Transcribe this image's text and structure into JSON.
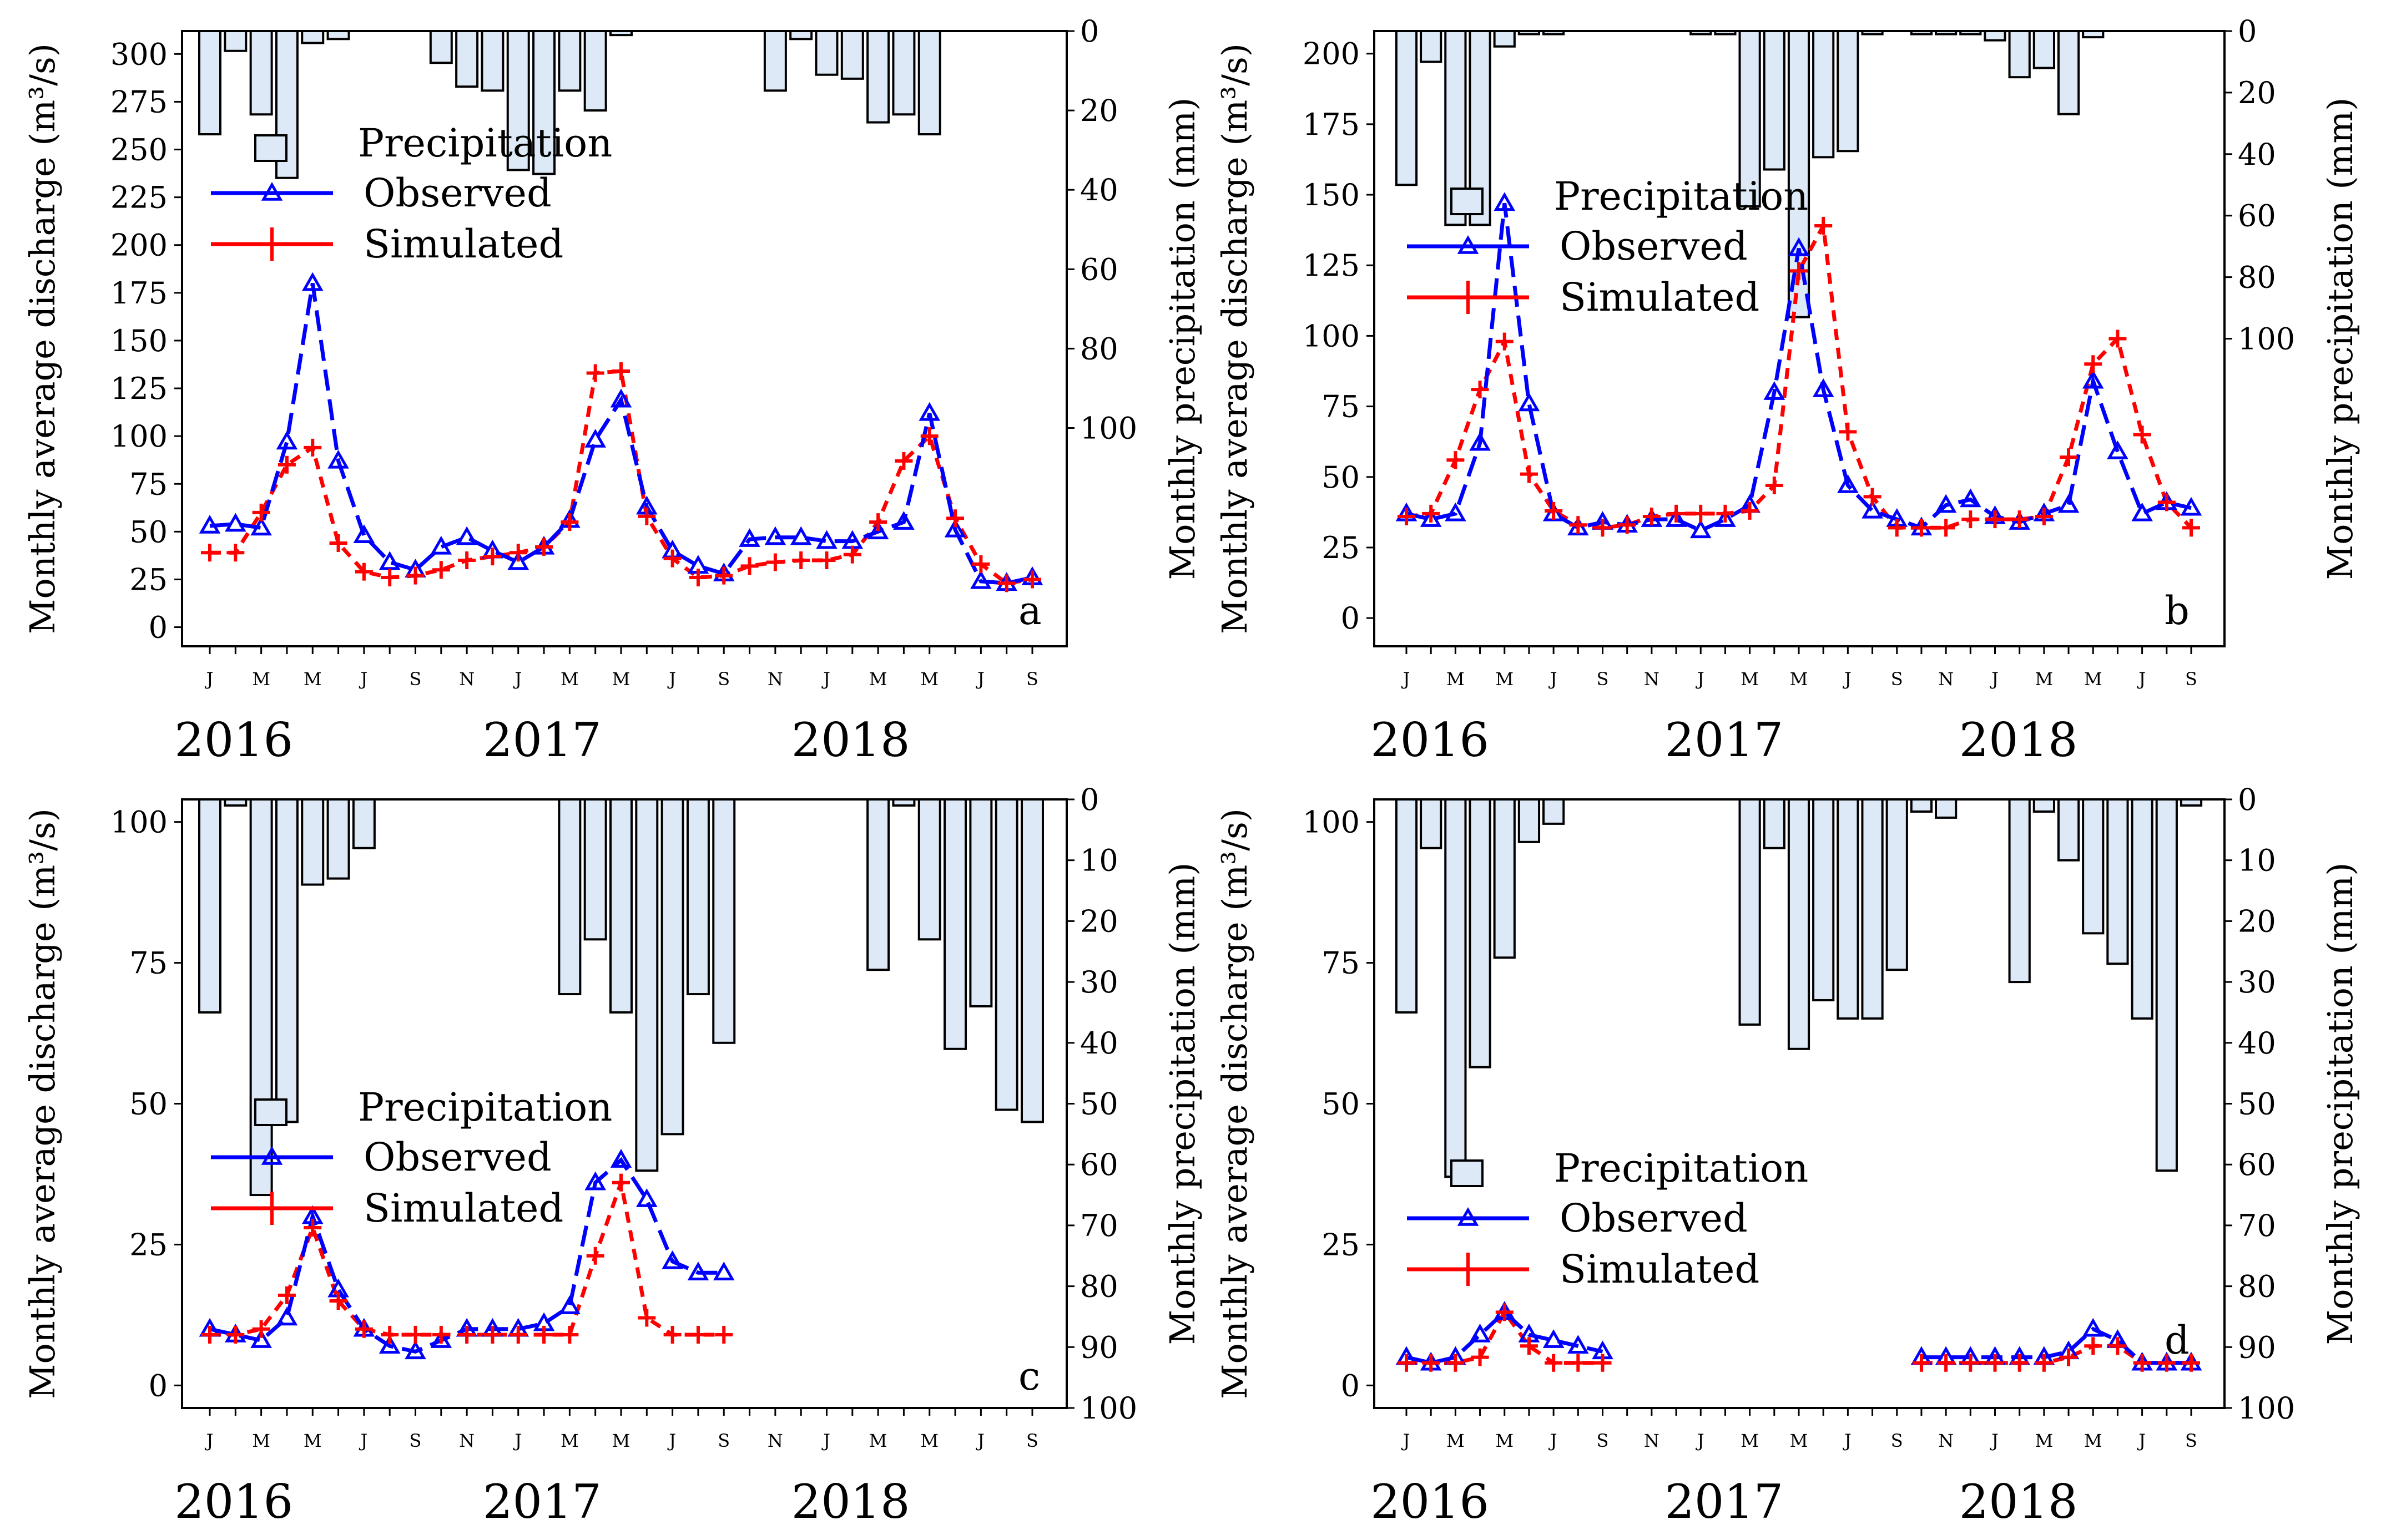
{
  "chart_data": [
    {
      "type": "line",
      "panel": "a",
      "months": [
        "Jan-2016",
        "Feb-2016",
        "Mar-2016",
        "Apr-2016",
        "May-2016",
        "Jun-2016",
        "Jul-2016",
        "Aug-2016",
        "Sep-2016",
        "Oct-2016",
        "Nov-2016",
        "Dec-2016",
        "Jan-2017",
        "Feb-2017",
        "Mar-2017",
        "Apr-2017",
        "May-2017",
        "Jun-2017",
        "Jul-2017",
        "Aug-2017",
        "Sep-2017",
        "Oct-2017",
        "Nov-2017",
        "Dec-2017",
        "Jan-2018",
        "Feb-2018",
        "Mar-2018",
        "Apr-2018",
        "May-2018",
        "Jun-2018",
        "Jul-2018",
        "Aug-2018",
        "Sep-2018"
      ],
      "month_labels": [
        "J",
        "M",
        "M",
        "J",
        "S",
        "N",
        "J",
        "M",
        "M",
        "J",
        "S",
        "N",
        "J",
        "M",
        "M",
        "J",
        "S"
      ],
      "years": [
        "2016",
        "2017",
        "2018"
      ],
      "ylabel": "Monthly average discharge (m³/s)",
      "y2label": "Monthly precipitation (mm)",
      "ylim": [
        -10,
        312
      ],
      "yticks": [
        0,
        25,
        50,
        75,
        100,
        125,
        150,
        175,
        200,
        225,
        250,
        275,
        300
      ],
      "y2lim": [
        0,
        155
      ],
      "y2ticks": [
        0,
        20,
        40,
        60,
        80,
        100
      ],
      "legend_position": "upper-left",
      "series": [
        {
          "name": "Observed",
          "color": "#0000ff",
          "marker": "triangle",
          "values": [
            53,
            54,
            52,
            97,
            180,
            87,
            48,
            34,
            30,
            42,
            47,
            40,
            34,
            42,
            56,
            98,
            119,
            63,
            40,
            32,
            28,
            46,
            47,
            47,
            45,
            45,
            50,
            55,
            112,
            51,
            24,
            23,
            26
          ]
        },
        {
          "name": "Simulated",
          "color": "#ff0000",
          "marker": "plus",
          "values": [
            39,
            39,
            60,
            85,
            94,
            44,
            29,
            26,
            27,
            30,
            35,
            37,
            39,
            42,
            55,
            133,
            134,
            58,
            36,
            26,
            27,
            32,
            34,
            35,
            35,
            38,
            55,
            87,
            100,
            57,
            33,
            23,
            25
          ]
        },
        {
          "name": "Precipitation",
          "type": "bar",
          "axis": "y2",
          "values": [
            26,
            5,
            21,
            37,
            3,
            2,
            0,
            0,
            0,
            8,
            14,
            15,
            35,
            36,
            15,
            20,
            1,
            0,
            0,
            0,
            0,
            0,
            15,
            2,
            11,
            12,
            23,
            21,
            26,
            0,
            0,
            0,
            0
          ]
        }
      ]
    },
    {
      "type": "line",
      "panel": "b",
      "months": [
        "Jan-2016",
        "Feb-2016",
        "Mar-2016",
        "Apr-2016",
        "May-2016",
        "Jun-2016",
        "Jul-2016",
        "Aug-2016",
        "Sep-2016",
        "Oct-2016",
        "Nov-2016",
        "Dec-2016",
        "Jan-2017",
        "Feb-2017",
        "Mar-2017",
        "Apr-2017",
        "May-2017",
        "Jun-2017",
        "Jul-2017",
        "Aug-2017",
        "Sep-2017",
        "Oct-2017",
        "Nov-2017",
        "Dec-2017",
        "Jan-2018",
        "Feb-2018",
        "Mar-2018",
        "Apr-2018",
        "May-2018",
        "Jun-2018",
        "Jul-2018",
        "Aug-2018",
        "Sep-2018"
      ],
      "month_labels": [
        "J",
        "M",
        "M",
        "J",
        "S",
        "N",
        "J",
        "M",
        "M",
        "J",
        "S",
        "N",
        "J",
        "M",
        "M",
        "J",
        "S"
      ],
      "years": [
        "2016",
        "2017",
        "2018"
      ],
      "ylabel": "Monthly average discharge (m³/s)",
      "y2label": "Monthly precipitation (mm)",
      "ylim": [
        -10,
        208
      ],
      "yticks": [
        0,
        25,
        50,
        75,
        100,
        125,
        150,
        175,
        200
      ],
      "y2lim": [
        0,
        200
      ],
      "y2ticks": [
        0,
        20,
        40,
        60,
        80,
        100
      ],
      "legend_position": "center-left",
      "series": [
        {
          "name": "Observed",
          "color": "#0000ff",
          "marker": "triangle",
          "values": [
            37,
            35,
            37,
            62,
            147,
            76,
            37,
            32,
            34,
            33,
            35,
            35,
            31,
            35,
            40,
            80,
            131,
            81,
            47,
            38,
            35,
            32,
            40,
            42,
            36,
            34,
            37,
            40,
            84,
            59,
            37,
            41,
            39
          ]
        },
        {
          "name": "Simulated",
          "color": "#ff0000",
          "marker": "plus",
          "values": [
            36,
            37,
            56,
            81,
            98,
            51,
            38,
            33,
            32,
            33,
            36,
            37,
            37,
            37,
            38,
            47,
            123,
            139,
            66,
            43,
            32,
            32,
            32,
            35,
            35,
            35,
            36,
            57,
            90,
            99,
            65,
            41,
            32
          ]
        },
        {
          "name": "Precipitation",
          "type": "bar",
          "axis": "y2",
          "values": [
            50,
            10,
            63,
            63,
            5,
            1,
            1,
            0,
            0,
            0,
            0,
            0,
            1,
            1,
            57,
            45,
            93,
            41,
            39,
            1,
            0,
            1,
            1,
            1,
            3,
            15,
            12,
            27,
            2,
            0,
            0,
            0,
            0
          ]
        }
      ]
    },
    {
      "type": "line",
      "panel": "c",
      "months": [
        "Jan-2016",
        "Feb-2016",
        "Mar-2016",
        "Apr-2016",
        "May-2016",
        "Jun-2016",
        "Jul-2016",
        "Aug-2016",
        "Sep-2016",
        "Oct-2016",
        "Nov-2016",
        "Dec-2016",
        "Jan-2017",
        "Feb-2017",
        "Mar-2017",
        "Apr-2017",
        "May-2017",
        "Jun-2017",
        "Jul-2017",
        "Aug-2017",
        "Sep-2017",
        "Oct-2017",
        "Nov-2017",
        "Dec-2017",
        "Jan-2018",
        "Feb-2018",
        "Mar-2018",
        "Apr-2018",
        "May-2018",
        "Jun-2018",
        "Jul-2018",
        "Aug-2018",
        "Sep-2018"
      ],
      "month_labels": [
        "J",
        "M",
        "M",
        "J",
        "S",
        "N",
        "J",
        "M",
        "M",
        "J",
        "S",
        "N",
        "J",
        "M",
        "M",
        "J",
        "S"
      ],
      "years": [
        "2016",
        "2017",
        "2018"
      ],
      "ylabel": "Monthly average discharge (m³/s)",
      "y2label": "Monthly precipitation (mm)",
      "ylim": [
        -4,
        104
      ],
      "yticks": [
        0,
        25,
        50,
        75,
        100
      ],
      "y2lim": [
        0,
        100
      ],
      "y2ticks": [
        0,
        10,
        20,
        30,
        40,
        50,
        60,
        70,
        80,
        90,
        100
      ],
      "legend_position": "center-left",
      "series": [
        {
          "name": "Observed",
          "color": "#0000ff",
          "marker": "triangle",
          "values": [
            10,
            9,
            8,
            12,
            30,
            17,
            10,
            7,
            6,
            8,
            10,
            10,
            10,
            11,
            14,
            36,
            40,
            33,
            22,
            20,
            20,
            null,
            null,
            null,
            null,
            null,
            null,
            null,
            null,
            null,
            null,
            null,
            null
          ]
        },
        {
          "name": "Simulated",
          "color": "#ff0000",
          "marker": "plus",
          "values": [
            9,
            9,
            10,
            16,
            28,
            15,
            10,
            9,
            9,
            9,
            9,
            9,
            9,
            9,
            9,
            23,
            36,
            12,
            9,
            9,
            9,
            null,
            null,
            null,
            null,
            null,
            null,
            null,
            null,
            null,
            null,
            null,
            null
          ]
        },
        {
          "name": "Precipitation",
          "type": "bar",
          "axis": "y2",
          "values": [
            35,
            1,
            65,
            53,
            14,
            13,
            8,
            0,
            0,
            0,
            0,
            0,
            0,
            0,
            32,
            23,
            35,
            61,
            55,
            32,
            40,
            0,
            0,
            0,
            0,
            0,
            28,
            1,
            23,
            41,
            34,
            51,
            53
          ]
        }
      ]
    },
    {
      "type": "line",
      "panel": "d",
      "months": [
        "Jan-2016",
        "Feb-2016",
        "Mar-2016",
        "Apr-2016",
        "May-2016",
        "Jun-2016",
        "Jul-2016",
        "Aug-2016",
        "Sep-2016",
        "Oct-2016",
        "Nov-2016",
        "Dec-2016",
        "Jan-2017",
        "Feb-2017",
        "Mar-2017",
        "Apr-2017",
        "May-2017",
        "Jun-2017",
        "Jul-2017",
        "Aug-2017",
        "Sep-2017",
        "Oct-2017",
        "Nov-2017",
        "Dec-2017",
        "Jan-2018",
        "Feb-2018",
        "Mar-2018",
        "Apr-2018",
        "May-2018",
        "Jun-2018",
        "Jul-2018",
        "Aug-2018",
        "Sep-2018"
      ],
      "month_labels": [
        "J",
        "M",
        "M",
        "J",
        "S",
        "N",
        "J",
        "M",
        "M",
        "J",
        "S",
        "N",
        "J",
        "M",
        "M",
        "J",
        "S"
      ],
      "years": [
        "2016",
        "2017",
        "2018"
      ],
      "ylabel": "Monthly average discharge (m³/s)",
      "y2label": "Monthly precipitation (mm)",
      "ylim": [
        -4,
        104
      ],
      "yticks": [
        0,
        25,
        50,
        75,
        100
      ],
      "y2lim": [
        0,
        100
      ],
      "y2ticks": [
        0,
        10,
        20,
        30,
        40,
        50,
        60,
        70,
        80,
        90,
        100
      ],
      "legend_position": "center-left",
      "series": [
        {
          "name": "Observed",
          "color": "#0000ff",
          "marker": "triangle",
          "values": [
            5,
            4,
            5,
            9,
            13,
            9,
            8,
            7,
            6,
            null,
            null,
            null,
            null,
            null,
            null,
            null,
            null,
            null,
            null,
            null,
            null,
            5,
            5,
            5,
            5,
            5,
            5,
            6,
            10,
            8,
            4,
            4,
            4
          ]
        },
        {
          "name": "Simulated",
          "color": "#ff0000",
          "marker": "plus",
          "values": [
            4,
            4,
            4,
            5,
            13,
            7,
            4,
            4,
            4,
            null,
            null,
            null,
            null,
            null,
            null,
            null,
            null,
            null,
            null,
            null,
            null,
            4,
            4,
            4,
            4,
            4,
            4,
            5,
            7,
            7,
            4,
            4,
            4
          ]
        },
        {
          "name": "Precipitation",
          "type": "bar",
          "axis": "y2",
          "values": [
            35,
            8,
            62,
            44,
            26,
            7,
            4,
            0,
            0,
            0,
            0,
            0,
            0,
            0,
            37,
            8,
            41,
            33,
            36,
            36,
            28,
            2,
            3,
            0,
            0,
            30,
            2,
            10,
            22,
            27,
            36,
            61,
            1
          ]
        }
      ]
    }
  ],
  "legend": {
    "precipitation": "Precipitation",
    "observed": "Observed",
    "simulated": "Simulated"
  },
  "colors": {
    "observed": "#0000ff",
    "simulated": "#ff0000",
    "bar_fill": "#dde9f6"
  }
}
